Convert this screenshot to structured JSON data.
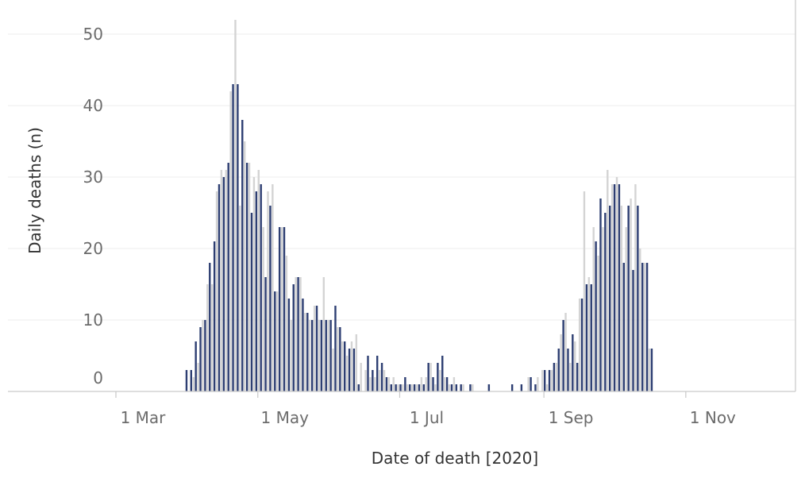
{
  "chart_data": {
    "type": "bar",
    "title": "",
    "xlabel": "Date of death [2020]",
    "ylabel": "Daily deaths (n)",
    "ylim": [
      0,
      54
    ],
    "y_ticks": [
      0,
      10,
      20,
      30,
      40,
      50
    ],
    "x_ticks": [
      {
        "date": "2020-03-01",
        "label": "1 Mar"
      },
      {
        "date": "2020-05-01",
        "label": "1 May"
      },
      {
        "date": "2020-07-01",
        "label": "1 Jul"
      },
      {
        "date": "2020-09-01",
        "label": "1 Sep"
      },
      {
        "date": "2020-11-01",
        "label": "1 Nov"
      }
    ],
    "grid": true,
    "legend": "none",
    "colors": {
      "highlight": "#2d3e72",
      "other": "#d4d4d4"
    },
    "series": [
      {
        "start_date": "2020-03-16",
        "values": [
          3,
          0,
          3,
          2,
          7,
          4,
          9,
          10,
          10,
          15,
          18,
          15,
          21,
          28,
          29,
          31,
          30,
          31,
          32,
          42,
          43,
          52,
          43,
          26,
          38,
          35,
          32,
          32,
          25,
          30,
          28,
          31,
          29,
          23,
          16,
          28,
          26,
          29,
          14,
          14,
          23,
          23,
          23,
          19,
          13,
          10,
          15,
          16,
          16,
          16,
          13,
          11,
          11,
          10,
          10,
          12,
          12,
          10,
          10,
          16,
          10,
          10,
          10,
          6,
          12,
          9,
          9,
          7,
          7,
          5,
          6,
          7,
          6,
          8,
          1,
          4,
          0,
          3,
          5,
          2,
          3,
          2,
          5,
          3,
          4,
          3,
          2,
          2,
          1,
          2,
          1,
          1,
          1,
          1,
          2,
          1,
          1,
          1,
          1,
          1,
          1,
          2,
          1,
          2,
          4,
          4,
          2,
          1,
          4,
          3,
          5,
          2,
          2,
          1,
          1,
          2,
          1,
          0,
          1,
          1,
          0,
          0,
          1,
          1,
          0,
          0,
          0,
          0,
          0,
          0,
          1,
          0,
          0,
          0,
          0,
          0,
          0,
          0,
          0,
          0,
          1,
          0,
          0,
          0,
          1,
          0,
          0,
          2,
          2,
          0,
          1,
          2,
          0,
          3,
          3,
          1,
          3,
          3,
          4,
          4,
          6,
          8,
          10,
          11,
          6,
          4,
          8,
          7,
          4,
          13,
          13,
          28,
          15,
          16,
          15,
          23,
          21,
          19,
          27,
          23,
          25,
          31,
          26,
          29,
          29,
          30,
          29,
          26,
          18,
          23,
          26,
          27,
          17,
          29,
          26,
          20,
          18,
          18,
          18,
          6,
          6
        ]
      }
    ]
  }
}
